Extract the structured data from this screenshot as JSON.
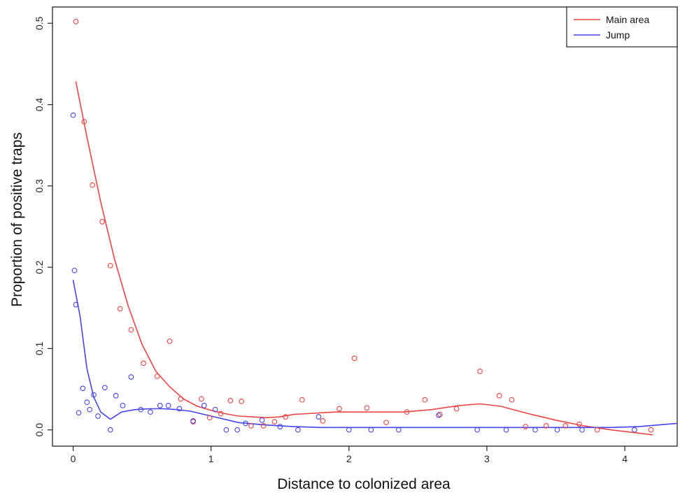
{
  "chart_data": {
    "type": "scatter",
    "xlabel": "Distance to colonized area",
    "ylabel": "Proportion of positive traps",
    "xlim": [
      -0.15,
      4.38
    ],
    "ylim": [
      -0.02,
      0.52
    ],
    "x_ticks": [
      "0",
      "1",
      "2",
      "3",
      "4"
    ],
    "x_tick_values": [
      0,
      1,
      2,
      3,
      4
    ],
    "y_ticks": [
      "0.0",
      "0.1",
      "0.2",
      "0.3",
      "0.4",
      "0.5"
    ],
    "y_tick_values": [
      0.0,
      0.1,
      0.2,
      0.3,
      0.4,
      0.5
    ],
    "legend_position": "top-right",
    "series": [
      {
        "name": "Main area",
        "color": "#ee4444",
        "points": [
          [
            0.02,
            0.502
          ],
          [
            0.08,
            0.379
          ],
          [
            0.14,
            0.301
          ],
          [
            0.21,
            0.256
          ],
          [
            0.27,
            0.202
          ],
          [
            0.34,
            0.149
          ],
          [
            0.42,
            0.123
          ],
          [
            0.51,
            0.082
          ],
          [
            0.61,
            0.066
          ],
          [
            0.7,
            0.109
          ],
          [
            0.78,
            0.038
          ],
          [
            0.87,
            0.01
          ],
          [
            0.93,
            0.038
          ],
          [
            0.99,
            0.015
          ],
          [
            1.07,
            0.02
          ],
          [
            1.14,
            0.036
          ],
          [
            1.22,
            0.035
          ],
          [
            1.29,
            0.005
          ],
          [
            1.38,
            0.005
          ],
          [
            1.46,
            0.01
          ],
          [
            1.54,
            0.016
          ],
          [
            1.66,
            0.037
          ],
          [
            1.81,
            0.011
          ],
          [
            1.93,
            0.026
          ],
          [
            2.04,
            0.088
          ],
          [
            2.13,
            0.027
          ],
          [
            2.27,
            0.009
          ],
          [
            2.42,
            0.022
          ],
          [
            2.55,
            0.037
          ],
          [
            2.66,
            0.019
          ],
          [
            2.78,
            0.026
          ],
          [
            2.95,
            0.072
          ],
          [
            3.09,
            0.042
          ],
          [
            3.18,
            0.037
          ],
          [
            3.28,
            0.004
          ],
          [
            3.43,
            0.005
          ],
          [
            3.57,
            0.005
          ],
          [
            3.67,
            0.007
          ],
          [
            3.8,
            0.0
          ],
          [
            4.19,
            0.0
          ]
        ],
        "fit": [
          [
            0.02,
            0.428
          ],
          [
            0.1,
            0.36
          ],
          [
            0.2,
            0.28
          ],
          [
            0.3,
            0.21
          ],
          [
            0.4,
            0.152
          ],
          [
            0.5,
            0.105
          ],
          [
            0.6,
            0.072
          ],
          [
            0.7,
            0.053
          ],
          [
            0.8,
            0.038
          ],
          [
            0.9,
            0.029
          ],
          [
            1.0,
            0.024
          ],
          [
            1.1,
            0.02
          ],
          [
            1.2,
            0.017
          ],
          [
            1.3,
            0.016
          ],
          [
            1.4,
            0.015
          ],
          [
            1.5,
            0.016
          ],
          [
            1.6,
            0.019
          ],
          [
            1.7,
            0.02
          ],
          [
            1.8,
            0.021
          ],
          [
            1.9,
            0.022
          ],
          [
            2.0,
            0.022
          ],
          [
            2.2,
            0.022
          ],
          [
            2.4,
            0.022
          ],
          [
            2.6,
            0.025
          ],
          [
            2.8,
            0.03
          ],
          [
            2.95,
            0.032
          ],
          [
            3.1,
            0.029
          ],
          [
            3.3,
            0.02
          ],
          [
            3.5,
            0.012
          ],
          [
            3.7,
            0.005
          ],
          [
            3.9,
            0.0
          ],
          [
            4.05,
            -0.003
          ],
          [
            4.2,
            -0.006
          ]
        ]
      },
      {
        "name": "Jump",
        "color": "#4444ee",
        "points": [
          [
            0.0,
            0.387
          ],
          [
            0.01,
            0.196
          ],
          [
            0.02,
            0.154
          ],
          [
            0.04,
            0.021
          ],
          [
            0.07,
            0.051
          ],
          [
            0.1,
            0.034
          ],
          [
            0.12,
            0.025
          ],
          [
            0.15,
            0.043
          ],
          [
            0.18,
            0.017
          ],
          [
            0.23,
            0.052
          ],
          [
            0.27,
            0.0
          ],
          [
            0.31,
            0.042
          ],
          [
            0.36,
            0.03
          ],
          [
            0.42,
            0.065
          ],
          [
            0.49,
            0.025
          ],
          [
            0.56,
            0.022
          ],
          [
            0.63,
            0.03
          ],
          [
            0.69,
            0.03
          ],
          [
            0.77,
            0.026
          ],
          [
            0.87,
            0.011
          ],
          [
            0.95,
            0.03
          ],
          [
            1.03,
            0.025
          ],
          [
            1.11,
            0.0
          ],
          [
            1.19,
            0.0
          ],
          [
            1.25,
            0.008
          ],
          [
            1.37,
            0.012
          ],
          [
            1.5,
            0.004
          ],
          [
            1.63,
            0.0
          ],
          [
            1.78,
            0.016
          ],
          [
            2.0,
            0.0
          ],
          [
            2.16,
            0.0
          ],
          [
            2.36,
            0.0
          ],
          [
            2.65,
            0.018
          ],
          [
            2.93,
            0.0
          ],
          [
            3.14,
            0.0
          ],
          [
            3.35,
            0.0
          ],
          [
            3.51,
            0.0
          ],
          [
            3.69,
            0.0
          ],
          [
            4.07,
            0.0
          ]
        ],
        "fit": [
          [
            0.0,
            0.184
          ],
          [
            0.05,
            0.14
          ],
          [
            0.1,
            0.075
          ],
          [
            0.15,
            0.04
          ],
          [
            0.2,
            0.022
          ],
          [
            0.27,
            0.013
          ],
          [
            0.35,
            0.022
          ],
          [
            0.45,
            0.025
          ],
          [
            0.55,
            0.026
          ],
          [
            0.65,
            0.026
          ],
          [
            0.75,
            0.025
          ],
          [
            0.85,
            0.023
          ],
          [
            1.0,
            0.017
          ],
          [
            1.2,
            0.009
          ],
          [
            1.4,
            0.006
          ],
          [
            1.6,
            0.004
          ],
          [
            1.8,
            0.003
          ],
          [
            2.0,
            0.003
          ],
          [
            2.5,
            0.003
          ],
          [
            3.0,
            0.003
          ],
          [
            3.5,
            0.003
          ],
          [
            3.9,
            0.003
          ],
          [
            4.1,
            0.004
          ],
          [
            4.38,
            0.008
          ]
        ]
      }
    ]
  }
}
